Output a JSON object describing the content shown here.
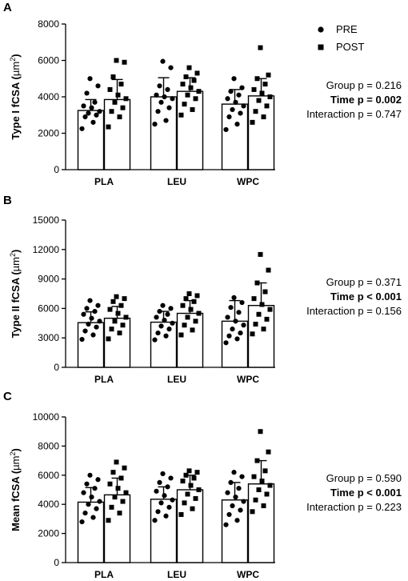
{
  "legend": [
    {
      "label": "PRE",
      "marker": "circle"
    },
    {
      "label": "POST",
      "marker": "square"
    }
  ],
  "colors": {
    "ink": "#000000",
    "bar_fill": "#ffffff"
  },
  "chart_data": [
    {
      "type": "bar",
      "panel": "A",
      "ylabel_main": "Type I fCSA (",
      "ylabel_unit": "µm",
      "ylabel_sup": "2",
      "ylabel_close": ")",
      "categories": [
        "PLA",
        "LEU",
        "WPC"
      ],
      "ylim": [
        0,
        8000
      ],
      "yticks": [
        0,
        2000,
        4000,
        6000,
        8000
      ],
      "series": [
        {
          "name": "PRE",
          "values": [
            3250,
            4000,
            3600
          ],
          "error": [
            600,
            1050,
            800
          ],
          "points": [
            [
              2250,
              2600,
              2900,
              3000,
              3100,
              3200,
              3400,
              3500,
              3700,
              4200,
              4600,
              5000
            ],
            [
              2500,
              2700,
              3200,
              3400,
              3700,
              3900,
              4000,
              4100,
              4400,
              4600,
              5600,
              5950
            ],
            [
              2200,
              2500,
              2900,
              3100,
              3300,
              3500,
              3700,
              3900,
              4100,
              4300,
              4500,
              5000
            ]
          ]
        },
        {
          "name": "POST",
          "values": [
            3850,
            4300,
            4050
          ],
          "error": [
            1100,
            750,
            950
          ],
          "points": [
            [
              2350,
              2900,
              3200,
              3400,
              3700,
              3900,
              4100,
              4400,
              4700,
              5100,
              5900,
              6000
            ],
            [
              3000,
              3300,
              3600,
              3900,
              4100,
              4300,
              4500,
              4700,
              4900,
              5100,
              5300,
              5600
            ],
            [
              2600,
              2900,
              3200,
              3500,
              3800,
              4000,
              4200,
              4400,
              4700,
              5000,
              5200,
              6700
            ]
          ]
        }
      ],
      "stats": [
        {
          "text": "Group p = 0.216",
          "bold": false
        },
        {
          "text": "Time p = 0.002",
          "bold": true
        },
        {
          "text": "Interaction p = 0.747",
          "bold": false
        }
      ]
    },
    {
      "type": "bar",
      "panel": "B",
      "ylabel_main": "Type II fCSA (",
      "ylabel_unit": "µm",
      "ylabel_sup": "2",
      "ylabel_close": ")",
      "categories": [
        "PLA",
        "LEU",
        "WPC"
      ],
      "ylim": [
        0,
        15000
      ],
      "yticks": [
        0,
        3000,
        6000,
        9000,
        12000,
        15000
      ],
      "series": [
        {
          "name": "PRE",
          "values": [
            4550,
            4600,
            4700
          ],
          "error": [
            1100,
            1100,
            2100
          ],
          "points": [
            [
              2850,
              3300,
              3700,
              4100,
              4400,
              4700,
              5000,
              5400,
              5700,
              6000,
              6300,
              6800
            ],
            [
              2800,
              3200,
              3500,
              3900,
              4200,
              4500,
              4800,
              5100,
              5400,
              5700,
              6000,
              6300
            ],
            [
              2500,
              2900,
              3200,
              3500,
              3900,
              4300,
              4700,
              5100,
              5600,
              6100,
              6600,
              7100
            ]
          ]
        },
        {
          "name": "POST",
          "values": [
            5000,
            5500,
            6300
          ],
          "error": [
            1200,
            1300,
            2300
          ],
          "points": [
            [
              2900,
              3500,
              3900,
              4300,
              4700,
              5100,
              5500,
              5900,
              6300,
              6700,
              7000,
              7200
            ],
            [
              3300,
              3800,
              4300,
              4700,
              5100,
              5500,
              5900,
              6300,
              6700,
              7000,
              7300,
              7500
            ],
            [
              3400,
              3900,
              4400,
              4900,
              5400,
              5900,
              6400,
              7000,
              7700,
              8600,
              9900,
              11500
            ]
          ]
        }
      ],
      "stats": [
        {
          "text": "Group p = 0.371",
          "bold": false
        },
        {
          "text": "Time p < 0.001",
          "bold": true
        },
        {
          "text": "Interaction p = 0.156",
          "bold": false
        }
      ]
    },
    {
      "type": "bar",
      "panel": "C",
      "ylabel_main": "Mean fCSA (",
      "ylabel_unit": "µm",
      "ylabel_sup": "2",
      "ylabel_close": ")",
      "categories": [
        "PLA",
        "LEU",
        "WPC"
      ],
      "ylim": [
        0,
        10000
      ],
      "yticks": [
        0,
        2000,
        4000,
        6000,
        8000,
        10000
      ],
      "series": [
        {
          "name": "PRE",
          "values": [
            4150,
            4350,
            4300
          ],
          "error": [
            1000,
            850,
            1200
          ],
          "points": [
            [
              2800,
              3100,
              3400,
              3700,
              4000,
              4200,
              4500,
              4800,
              5100,
              5400,
              5700,
              6000
            ],
            [
              2900,
              3200,
              3500,
              3800,
              4100,
              4300,
              4600,
              4900,
              5200,
              5500,
              5800,
              6100
            ],
            [
              2600,
              2900,
              3300,
              3600,
              3900,
              4200,
              4500,
              4800,
              5100,
              5500,
              5900,
              6200
            ]
          ]
        },
        {
          "name": "POST",
          "values": [
            4650,
            5000,
            5400
          ],
          "error": [
            1150,
            1000,
            1600
          ],
          "points": [
            [
              2900,
              3400,
              3800,
              4200,
              4500,
              4800,
              5100,
              5400,
              5800,
              6200,
              6500,
              6900
            ],
            [
              3300,
              3700,
              4100,
              4400,
              4700,
              5000,
              5300,
              5600,
              5800,
              6000,
              6200,
              6300
            ],
            [
              3500,
              3900,
              4300,
              4700,
              5000,
              5300,
              5600,
              5900,
              6300,
              7000,
              7600,
              9000
            ]
          ]
        }
      ],
      "stats": [
        {
          "text": "Group p = 0.590",
          "bold": false
        },
        {
          "text": "Time p < 0.001",
          "bold": true
        },
        {
          "text": "Interaction p = 0.223",
          "bold": false
        }
      ]
    }
  ]
}
